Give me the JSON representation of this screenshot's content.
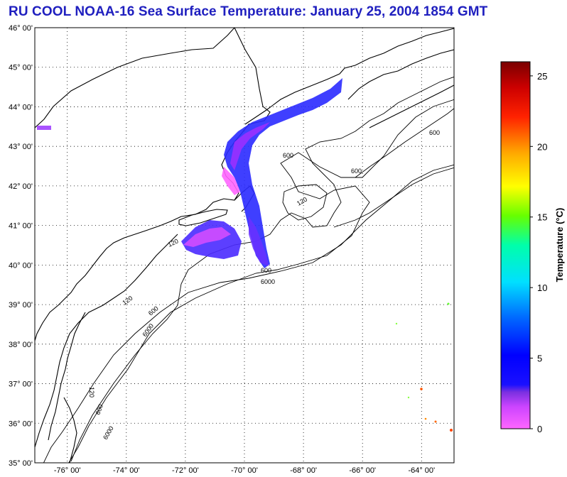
{
  "title": "RU COOL  NOAA-16  Sea Surface Temperature:  January 25, 2004 1854 GMT",
  "map": {
    "lat_labels": [
      "46° 00'",
      "45° 00'",
      "44° 00'",
      "43° 00'",
      "42° 00'",
      "41° 00'",
      "40° 00'",
      "39° 00'",
      "38° 00'",
      "37° 00'",
      "36° 00'",
      "35° 00'"
    ],
    "lon_labels": [
      "-76° 00'",
      "-74° 00'",
      "-72° 00'",
      "-70° 00'",
      "-68° 00'",
      "-66° 00'",
      "-64° 00'"
    ],
    "lat_values": [
      46,
      45,
      44,
      43,
      42,
      41,
      40,
      39,
      38,
      37,
      36,
      35
    ],
    "lon_values": [
      -76,
      -74,
      -72,
      -70,
      -68,
      -66,
      -64
    ],
    "lon_range": [
      -77.1,
      -62.9
    ],
    "lat_range": [
      35,
      46
    ],
    "contour_labels": [
      "120",
      "600",
      "6000",
      "120",
      "600",
      "6000",
      "120",
      "600",
      "6000",
      "600",
      "600",
      "600",
      "120"
    ]
  },
  "colorbar": {
    "label": "Temperature (°C)",
    "ticks": [
      "0",
      "5",
      "10",
      "15",
      "20",
      "25"
    ],
    "tick_values": [
      0,
      5,
      10,
      15,
      20,
      25
    ],
    "range": [
      0,
      26
    ],
    "colors": [
      "#ff66ff",
      "#cc44ff",
      "#7a30e0",
      "#0000ff",
      "#0088ff",
      "#00e0ff",
      "#00ff88",
      "#66ff00",
      "#ffff00",
      "#ffaa00",
      "#ff3300",
      "#cc0000",
      "#880000"
    ]
  }
}
